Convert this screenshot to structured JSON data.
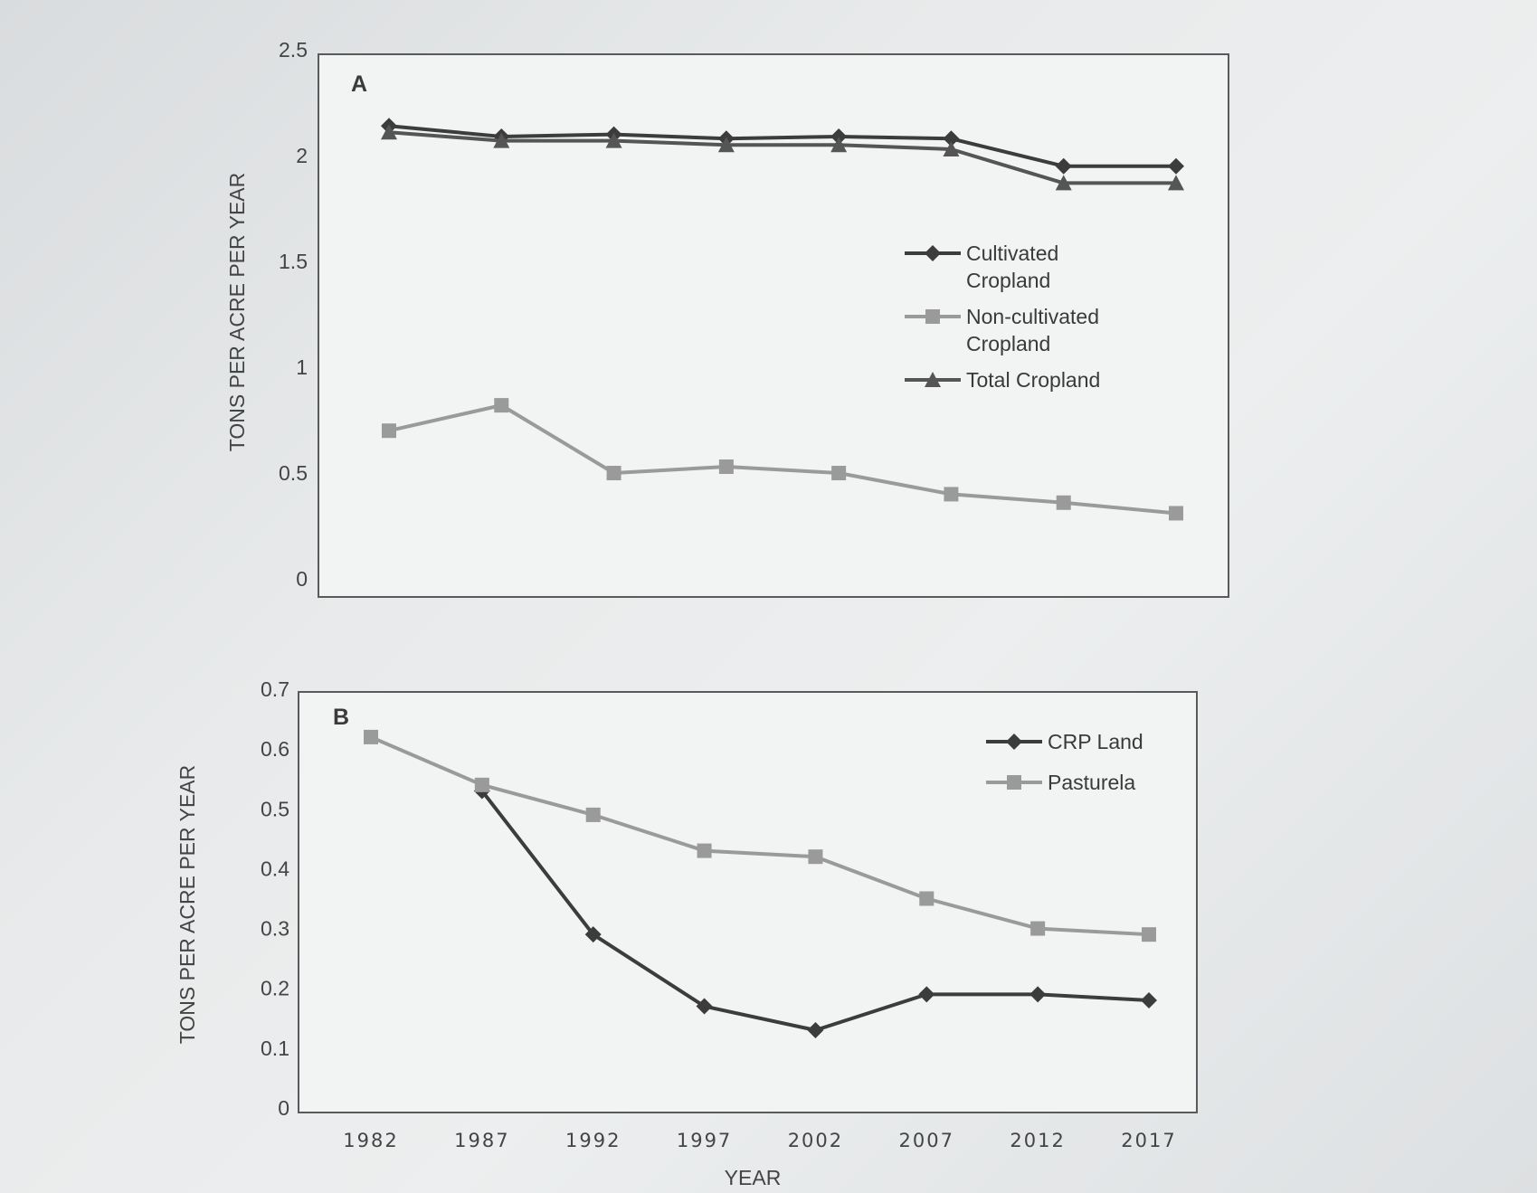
{
  "chart_data": [
    {
      "type": "line",
      "panel_label": "A",
      "ylabel": "TONS PER ACRE PER YEAR",
      "xlabel": "",
      "ylim": [
        0,
        2.5
      ],
      "y_ticks": [
        "0",
        "0.5",
        "1",
        "1.5",
        "2",
        "2.5"
      ],
      "x": [
        1982,
        1987,
        1992,
        1997,
        2002,
        2007,
        2012,
        2017
      ],
      "legend_position": "right",
      "series": [
        {
          "name": "Cultivated Cropland",
          "marker": "diamond",
          "color": "#3c3c3c",
          "values": [
            2.14,
            2.09,
            2.1,
            2.08,
            2.09,
            2.08,
            1.95,
            1.95
          ]
        },
        {
          "name": "Non-cultivated Cropland",
          "marker": "square",
          "color": "#9a9a9a",
          "values": [
            0.7,
            0.82,
            0.5,
            0.53,
            0.5,
            0.4,
            0.36,
            0.31
          ]
        },
        {
          "name": "Total Cropland",
          "marker": "triangle",
          "color": "#555555",
          "values": [
            2.11,
            2.07,
            2.07,
            2.05,
            2.05,
            2.03,
            1.87,
            1.87
          ]
        }
      ]
    },
    {
      "type": "line",
      "panel_label": "B",
      "ylabel": "TONS PER ACRE PER YEAR",
      "xlabel": "YEAR",
      "ylim": [
        0,
        0.7
      ],
      "y_ticks": [
        "0",
        "0.1",
        "0.2",
        "0.3",
        "0.4",
        "0.5",
        "0.6",
        "0.7"
      ],
      "x": [
        1982,
        1987,
        1992,
        1997,
        2002,
        2007,
        2012,
        2017
      ],
      "x_ticks": [
        "1982",
        "1987",
        "1992",
        "1997",
        "2002",
        "2007",
        "2012",
        "2017"
      ],
      "legend_position": "top-right",
      "series": [
        {
          "name": "CRP Land",
          "marker": "diamond",
          "color": "#3c3c3c",
          "values": [
            null,
            0.53,
            0.29,
            0.17,
            0.13,
            0.19,
            0.19,
            0.18
          ]
        },
        {
          "name": "Pasturela",
          "marker": "square",
          "color": "#9a9a9a",
          "values": [
            0.62,
            0.54,
            0.49,
            0.43,
            0.42,
            0.35,
            0.3,
            0.29
          ]
        }
      ]
    }
  ]
}
